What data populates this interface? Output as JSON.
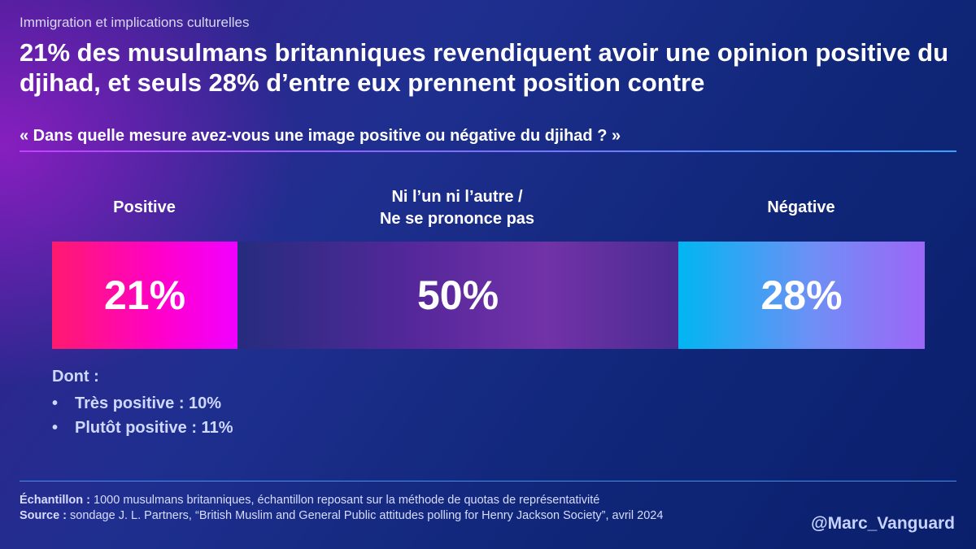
{
  "header": {
    "supertitle": "Immigration et implications culturelles",
    "title": "21% des musulmans britanniques revendiquent avoir une opinion positive du djihad, et seuls 28% d’entre eux prennent position contre",
    "question": "« Dans quelle mesure avez-vous une image positive ou négative du djihad ? »"
  },
  "colors": {
    "positive": "#ff00cc",
    "neutral": "#6a2ea6",
    "negative": "#4aa3f5",
    "accent_line": "#4da3ff"
  },
  "chart_data": {
    "type": "bar",
    "orientation": "horizontal-stacked",
    "title": "« Dans quelle mesure avez-vous une image positive ou négative du djihad ? »",
    "unit": "%",
    "categories": [
      "Positive",
      "Ni l’un ni l’autre / Ne se prononce pas",
      "Négative"
    ],
    "category_lines": [
      [
        "Positive"
      ],
      [
        "Ni l’un ni l’autre /",
        "Ne se prononce pas"
      ],
      [
        "Négative"
      ]
    ],
    "values": [
      21,
      50,
      28
    ],
    "value_labels": [
      "21%",
      "50%",
      "28%"
    ]
  },
  "breakdown": {
    "heading": "Dont :",
    "items": [
      "Très positive : 10%",
      "Plutôt positive : 11%"
    ]
  },
  "footer": {
    "sample_label": "Échantillon :",
    "sample_text": " 1000 musulmans britanniques, échantillon reposant sur la méthode de quotas de représentativité",
    "source_label": "Source :",
    "source_text": " sondage J. L. Partners, “British Muslim and General Public attitudes polling for Henry Jackson Society”, avril 2024",
    "handle": "@Marc_Vanguard"
  }
}
